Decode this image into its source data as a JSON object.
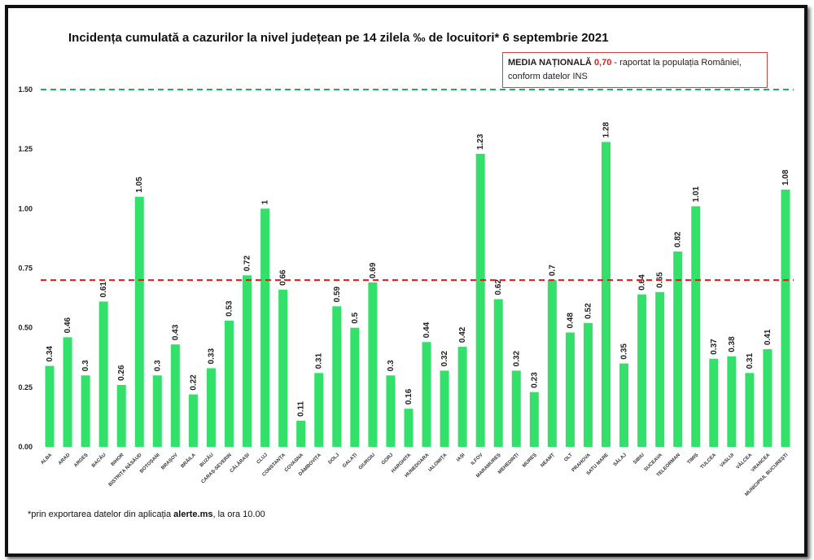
{
  "chart_data": {
    "type": "bar",
    "title": "Incidența cumulată a cazurilor la nivel județean pe 14 zilela ‰ de locuitori* 6 septembrie 2021",
    "categories": [
      "ALBA",
      "ARAD",
      "ARGEȘ",
      "BACĂU",
      "BIHOR",
      "BISTRIȚA NĂSĂUD",
      "BOTOȘANI",
      "BRAȘOV",
      "BRĂILA",
      "BUZĂU",
      "CARAȘ-SEVERIN",
      "CĂLĂRAȘI",
      "CLUJ",
      "CONSTANȚA",
      "COVASNA",
      "DÂMBOVIȚA",
      "DOLJ",
      "GALAȚI",
      "GIURGIU",
      "GORJ",
      "HARGHITA",
      "HUNEDOARA",
      "IALOMIȚA",
      "IAȘI",
      "ILFOV",
      "MARAMUREȘ",
      "MEHEDINȚI",
      "MUREȘ",
      "NEAMȚ",
      "OLT",
      "PRAHOVA",
      "SATU MARE",
      "SĂLAJ",
      "SIBIU",
      "SUCEAVA",
      "TELEORMAN",
      "TIMIȘ",
      "TULCEA",
      "VASLUI",
      "VÂLCEA",
      "VRANCEA",
      "MUNICIPIUL BUCUREȘTI"
    ],
    "values": [
      0.34,
      0.46,
      0.3,
      0.61,
      0.26,
      1.05,
      0.3,
      0.43,
      0.22,
      0.33,
      0.53,
      0.72,
      1,
      0.66,
      0.11,
      0.31,
      0.59,
      0.5,
      0.69,
      0.3,
      0.16,
      0.44,
      0.32,
      0.42,
      1.23,
      0.62,
      0.32,
      0.23,
      0.7,
      0.48,
      0.52,
      1.28,
      0.35,
      0.64,
      0.65,
      0.82,
      1.01,
      0.37,
      0.38,
      0.31,
      0.41,
      1.08
    ],
    "ylim": [
      0,
      1.5
    ],
    "yticks": [
      "0.00",
      "0.25",
      "0.50",
      "0.75",
      "1.00",
      "1.25",
      "1.50"
    ],
    "reference_lines": [
      {
        "value": 1.5,
        "color": "#2aa85a",
        "style": "dashed"
      },
      {
        "value": 0.7,
        "color": "#d02020",
        "style": "dashed"
      }
    ],
    "bar_color": "#33e06a",
    "grid": false,
    "legend_placement": "top-right"
  },
  "legend": {
    "label": "MEDIA NAȚIONALĂ",
    "value": "0,70",
    "text1": " - raportat la populația României,",
    "text2": "conform datelor INS"
  },
  "footnote": {
    "before": "*prin exportarea datelor din aplicația ",
    "bold": "alerte.ms",
    "after": ", la ora 10.00"
  }
}
